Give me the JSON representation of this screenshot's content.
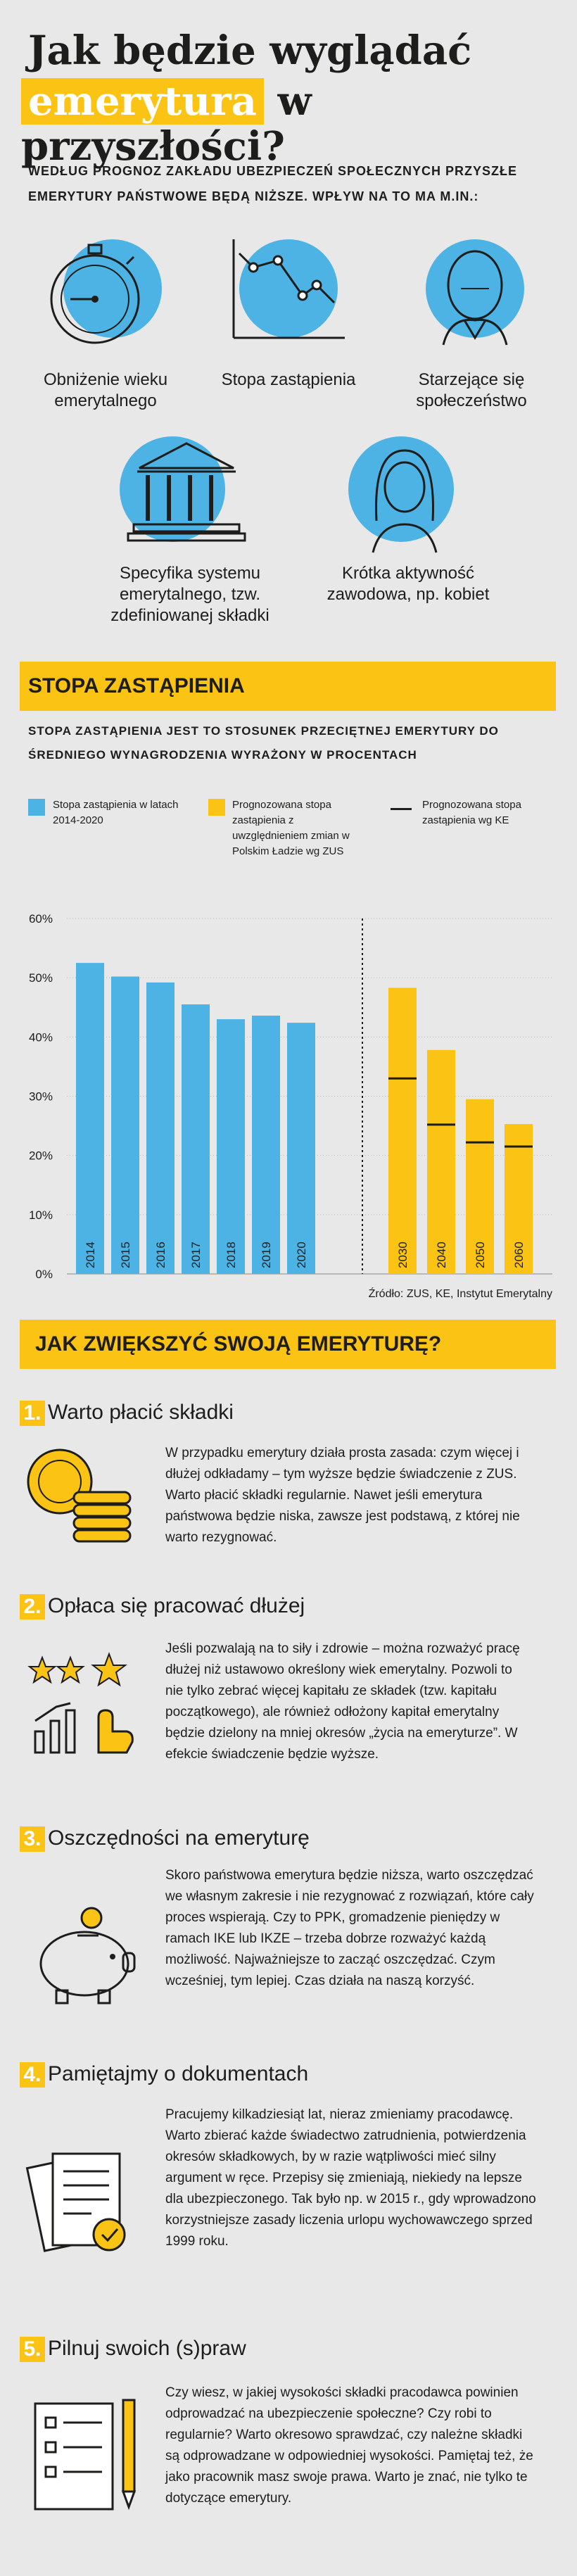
{
  "header": {
    "title_line1": "Jak będzie wyglądać",
    "title_highlight": "emerytura",
    "title_line2_rest": "w przyszłości?"
  },
  "intro": {
    "text": "WEDŁUG PROGNOZ ZAKŁADU UBEZPIECZEŃ SPOŁECZNYCH PRZYSZŁE EMERYTURY PAŃSTWOWE BĘDĄ NIŻSZE. WPŁYW NA TO MA M.IN.:"
  },
  "factors": [
    {
      "icon": "stopwatch-icon",
      "label": "Obniżenie wieku emerytalnego"
    },
    {
      "icon": "line-chart-icon",
      "label": "Stopa zastąpienia"
    },
    {
      "icon": "elderly-man-icon",
      "label": "Starzejące się społeczeństwo"
    },
    {
      "icon": "institution-icon",
      "label": "Specyfika systemu emerytalnego, tzw. zdefiniowanej składki"
    },
    {
      "icon": "woman-icon",
      "label": "Krótka aktywność zawodowa, np. kobiet"
    }
  ],
  "chart_section": {
    "title": "STOPA ZASTĄPIENIA",
    "subtitle": "STOPA ZASTĄPIENIA JEST TO STOSUNEK PRZECIĘTNEJ EMERYTURY DO ŚREDNIEGO WYNAGRODZENIA WYRAŻONY W PROCENTACH",
    "source": "Źródło: ZUS, KE, Instytut Emerytalny"
  },
  "colors": {
    "blue": "#4cb3e4",
    "yellow": "#fbc314",
    "dark": "#1d1d1b",
    "background": "#e8e8e8"
  },
  "chart_data": {
    "type": "bar",
    "title": "STOPA ZASTĄPIENIA",
    "ylabel": "",
    "xlabel": "",
    "ylim": [
      0,
      60
    ],
    "yticks": [
      "0%",
      "10%",
      "20%",
      "30%",
      "40%",
      "50%",
      "60%"
    ],
    "legend": [
      {
        "name": "Stopa zastąpienia w latach 2014-2020",
        "style": "blue-square"
      },
      {
        "name": "Prognozowana stopa zastąpienia z uwzględnieniem zmian w Polskim Ładzie wg ZUS",
        "style": "yellow-square"
      },
      {
        "name": "Prognozowana stopa zastąpienia wg KE",
        "style": "black-line"
      }
    ],
    "series": [
      {
        "name": "Stopa zastąpienia w latach 2014-2020",
        "categories": [
          "2014",
          "2015",
          "2016",
          "2017",
          "2018",
          "2019",
          "2020"
        ],
        "values": [
          52.5,
          50.2,
          49.2,
          45.5,
          43.0,
          43.6,
          42.4
        ]
      },
      {
        "name": "Prognozowana stopa zastąpienia z uwzględnieniem zmian w Polskim Ładzie wg ZUS",
        "categories": [
          "2030",
          "2040",
          "2050",
          "2060"
        ],
        "values": [
          48.3,
          37.8,
          29.5,
          25.3
        ]
      },
      {
        "name": "Prognozowana stopa zastąpienia wg KE",
        "categories": [
          "2030",
          "2040",
          "2050",
          "2060"
        ],
        "values": [
          33.0,
          25.2,
          22.2,
          21.5
        ]
      }
    ]
  },
  "tips_section": {
    "title": "JAK ZWIĘKSZYĆ SWOJĄ EMERYTURĘ?",
    "tips": [
      {
        "num": "1.",
        "title": "Warto płacić składki",
        "icon": "coins-icon",
        "text": "W przypadku emerytury działa prosta zasada: czym więcej i dłużej odkładamy – tym wyższe będzie świadczenie z ZUS. Warto płacić składki regularnie. Nawet jeśli emerytura państwowa będzie niska, zawsze jest podstawą, z której nie warto rezygnować."
      },
      {
        "num": "2.",
        "title": "Opłaca się pracować dłużej",
        "icon": "stars-growth-icon",
        "text": "Jeśli pozwalają na to siły i zdrowie – można rozważyć pracę dłużej niż ustawowo określony wiek emerytalny. Pozwoli to nie tylko zebrać więcej kapitału ze składek (tzw. kapitału początkowego), ale również odłożony kapitał emerytalny będzie dzielony na mniej okresów „życia na emeryturze”. W efekcie świadczenie będzie wyższe."
      },
      {
        "num": "3.",
        "title": "Oszczędności na emeryturę",
        "icon": "piggy-bank-icon",
        "text": "Skoro państwowa emerytura będzie niższa, warto oszczędzać we własnym zakresie i nie rezygnować z rozwiązań, które cały proces wspierają. Czy to PPK, gromadzenie pieniędzy w ramach IKE lub IKZE – trzeba dobrze rozważyć każdą możliwość. Najważniejsze to zacząć oszczędzać. Czym wcześniej, tym lepiej. Czas działa na naszą korzyść."
      },
      {
        "num": "4.",
        "title": "Pamiętajmy o dokumentach",
        "icon": "documents-icon",
        "text": "Pracujemy kilkadziesiąt lat, nieraz zmieniamy pracodawcę. Warto zbierać każde świadectwo zatrudnienia, potwierdzenia okresów składkowych, by w razie wątpliwości mieć silny argument w ręce. Przepisy się zmieniają, niekiedy na lepsze dla ubezpieczonego. Tak było np. w 2015 r., gdy wprowadzono korzystniejsze zasady liczenia urlopu wychowawczego sprzed 1999 roku."
      },
      {
        "num": "5.",
        "title": "Pilnuj swoich (s)praw",
        "icon": "checklist-icon",
        "text": "Czy wiesz, w jakiej wysokości składki pracodawca powinien odprowadzać na ubezpieczenie społeczne? Czy robi to regularnie? Warto okresowo sprawdzać, czy należne składki są odprowadzane w odpowiedniej wysokości. Pamiętaj też, że jako pracownik masz swoje prawa. Warto je znać, nie tylko te dotyczące emerytury."
      }
    ]
  }
}
